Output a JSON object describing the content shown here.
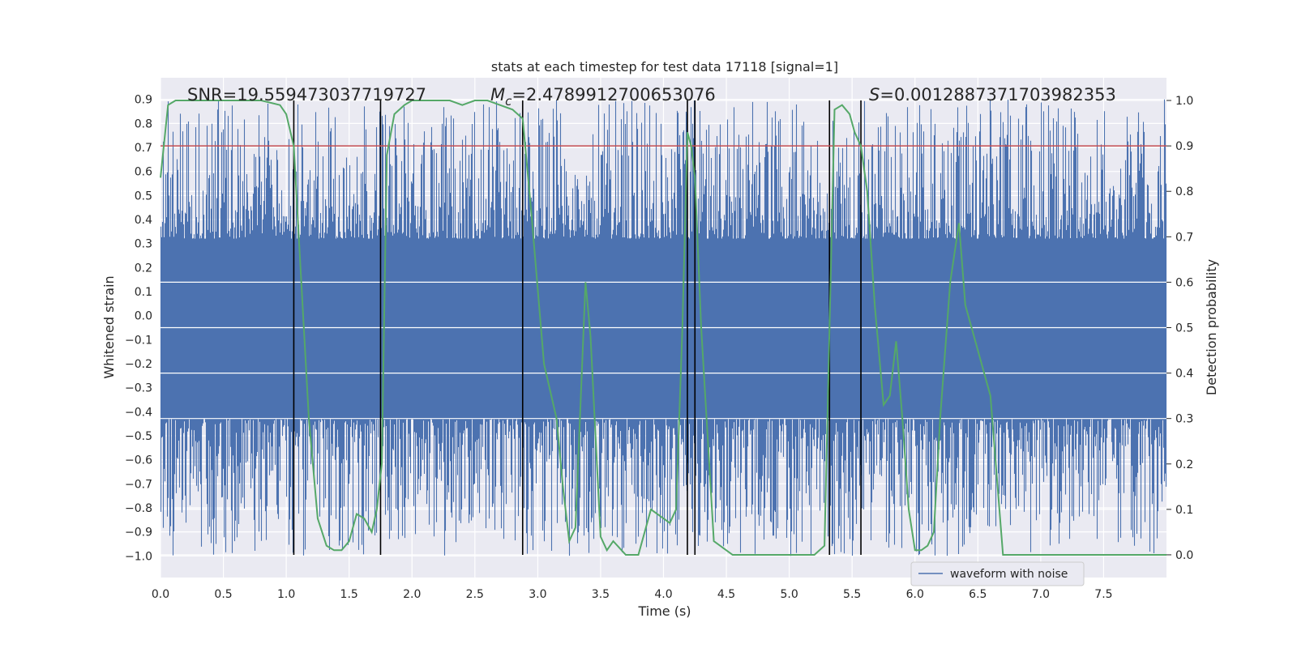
{
  "chart_data": {
    "type": "line",
    "title": "stats at each timestep for test data 17118 [signal=1]",
    "xlabel": "Time (s)",
    "ylabel": "Whitened strain",
    "y2label": "Detection probability",
    "xlim": [
      0.0,
      8.0
    ],
    "ylim": [
      -1.09,
      0.99
    ],
    "y2lim": [
      -0.05,
      1.05
    ],
    "xticks": [
      "0.0",
      "0.5",
      "1.0",
      "1.5",
      "2.0",
      "2.5",
      "3.0",
      "3.5",
      "4.0",
      "4.5",
      "5.0",
      "5.5",
      "6.0",
      "6.5",
      "7.0",
      "7.5"
    ],
    "xtick_values": [
      0.0,
      0.5,
      1.0,
      1.5,
      2.0,
      2.5,
      3.0,
      3.5,
      4.0,
      4.5,
      5.0,
      5.5,
      6.0,
      6.5,
      7.0,
      7.5
    ],
    "yticks": [
      "0.9",
      "0.8",
      "0.7",
      "0.6",
      "0.5",
      "0.4",
      "0.3",
      "0.2",
      "0.1",
      "0.0",
      "−0.1",
      "−0.2",
      "−0.3",
      "−0.4",
      "−0.5",
      "−0.6",
      "−0.7",
      "−0.8",
      "−0.9",
      "−1.0"
    ],
    "ytick_values": [
      0.9,
      0.8,
      0.7,
      0.6,
      0.5,
      0.4,
      0.3,
      0.2,
      0.1,
      0.0,
      -0.1,
      -0.2,
      -0.3,
      -0.4,
      -0.5,
      -0.6,
      -0.7,
      -0.8,
      -0.9,
      -1.0
    ],
    "y2ticks": [
      "1.0",
      "0.9",
      "0.8",
      "0.7",
      "0.6",
      "0.5",
      "0.4",
      "0.3",
      "0.2",
      "0.1",
      "0.0"
    ],
    "y2tick_values": [
      1.0,
      0.9,
      0.8,
      0.7,
      0.6,
      0.5,
      0.4,
      0.3,
      0.2,
      0.1,
      0.0
    ],
    "threshold": {
      "value": 0.9,
      "axis": "y2",
      "color": "#c44e52"
    },
    "annotations": {
      "snr": "SNR=19.559473037719727",
      "mc_symbol": "M",
      "mc_sub": "c",
      "mc_value": "=2.4789912700653076",
      "s_symbol": "S",
      "s_value": "=0.0012887371703982353"
    },
    "vertical_lines": [
      1.06,
      1.75,
      2.88,
      4.19,
      4.25,
      5.32,
      5.57
    ],
    "series": [
      {
        "name": "waveform with noise",
        "axis": "y",
        "color": "#4c72b0",
        "style": "noise",
        "duration": 8.0,
        "core_top": 0.32,
        "core_bottom": -0.43,
        "spike_top_range": [
          0.35,
          0.9
        ],
        "spike_bottom_range": [
          -0.35,
          -1.0
        ]
      },
      {
        "name": "detection probability",
        "axis": "y2",
        "color": "#55a868",
        "x": [
          0.0,
          0.06,
          0.12,
          0.2,
          0.4,
          0.6,
          0.8,
          0.95,
          1.0,
          1.06,
          1.12,
          1.18,
          1.25,
          1.32,
          1.38,
          1.44,
          1.5,
          1.56,
          1.62,
          1.68,
          1.72,
          1.76,
          1.8,
          1.86,
          1.94,
          2.0,
          2.1,
          2.2,
          2.3,
          2.4,
          2.5,
          2.6,
          2.7,
          2.8,
          2.88,
          2.95,
          3.05,
          3.15,
          3.2,
          3.25,
          3.3,
          3.38,
          3.42,
          3.5,
          3.55,
          3.6,
          3.7,
          3.8,
          3.9,
          4.0,
          4.05,
          4.1,
          4.15,
          4.19,
          4.22,
          4.25,
          4.3,
          4.4,
          4.55,
          4.6,
          4.7,
          5.0,
          5.2,
          5.28,
          5.32,
          5.36,
          5.42,
          5.48,
          5.52,
          5.57,
          5.62,
          5.68,
          5.75,
          5.8,
          5.85,
          5.9,
          5.95,
          6.0,
          6.05,
          6.1,
          6.15,
          6.2,
          6.28,
          6.35,
          6.4,
          6.5,
          6.6,
          6.7,
          6.8,
          7.0,
          7.5,
          8.0
        ],
        "y": [
          0.83,
          0.99,
          1.0,
          1.0,
          1.0,
          1.0,
          1.0,
          0.99,
          0.97,
          0.9,
          0.6,
          0.3,
          0.08,
          0.02,
          0.01,
          0.01,
          0.03,
          0.09,
          0.08,
          0.05,
          0.1,
          0.2,
          0.88,
          0.97,
          0.99,
          1.0,
          1.0,
          1.0,
          1.0,
          0.99,
          1.0,
          1.0,
          0.99,
          0.98,
          0.96,
          0.75,
          0.42,
          0.3,
          0.15,
          0.03,
          0.06,
          0.6,
          0.48,
          0.04,
          0.01,
          0.03,
          0.0,
          0.0,
          0.1,
          0.08,
          0.07,
          0.1,
          0.5,
          0.93,
          0.9,
          0.83,
          0.5,
          0.03,
          0.0,
          0.0,
          0.0,
          0.0,
          0.0,
          0.02,
          0.5,
          0.98,
          0.99,
          0.97,
          0.93,
          0.9,
          0.8,
          0.55,
          0.33,
          0.35,
          0.47,
          0.3,
          0.1,
          0.01,
          0.01,
          0.02,
          0.05,
          0.3,
          0.6,
          0.73,
          0.55,
          0.45,
          0.35,
          0.0,
          0.0,
          0.0,
          0.0,
          0.0
        ]
      }
    ],
    "legend": {
      "label": "waveform with noise",
      "placement": "bottom-right"
    }
  }
}
